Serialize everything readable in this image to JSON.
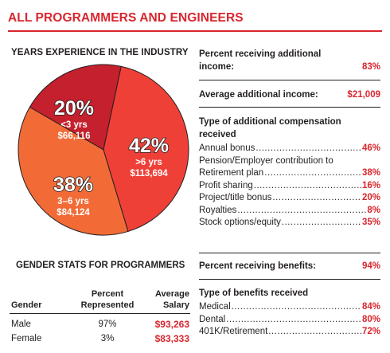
{
  "title": "ALL PROGRAMMERS AND ENGINEERS",
  "chart_data": {
    "type": "pie",
    "title": "YEARS EXPERIENCE IN THE INDUSTRY",
    "slices": [
      {
        "percent_label": "20%",
        "value": 20,
        "range": "<3 yrs",
        "salary": "$66,116",
        "color": "#c4202d"
      },
      {
        "percent_label": "42%",
        "value": 42,
        "range": ">6 yrs",
        "salary": "$113,694",
        "color": "#ef4037"
      },
      {
        "percent_label": "38%",
        "value": 38,
        "range": "3–6 yrs",
        "salary": "$84,124",
        "color": "#f26b36"
      }
    ]
  },
  "gender": {
    "title": "GENDER STATS FOR PROGRAMMERS",
    "col_gender": "Gender",
    "col_percent_1": "Percent",
    "col_percent_2": "Represented",
    "col_salary_1": "Average",
    "col_salary_2": "Salary",
    "rows": [
      {
        "gender": "Male",
        "percent": "97%",
        "salary": "$93,263"
      },
      {
        "gender": "Female",
        "percent": "3%",
        "salary": "$83,333"
      }
    ]
  },
  "additional": {
    "label_1": "Percent receiving additional",
    "label_2": "income:",
    "value": "83%"
  },
  "avg_additional": {
    "label": "Average additional income:",
    "value": "$21,009"
  },
  "comp_types": {
    "title_1": "Type of additional compensation",
    "title_2": "received",
    "items": [
      {
        "name": "Annual bonus",
        "value": "46%"
      },
      {
        "name": "Pension/Employer contribution to",
        "name2": "Retirement plan",
        "value": "38%"
      },
      {
        "name": "Profit sharing",
        "value": "16%"
      },
      {
        "name": "Project/title bonus",
        "value": "20%"
      },
      {
        "name": "Royalties",
        "value": "8%"
      },
      {
        "name": "Stock options/equity",
        "value": "35%"
      }
    ]
  },
  "benefits": {
    "label": "Percent receiving benefits:",
    "value": "94%"
  },
  "benefit_types": {
    "title": "Type of benefits received",
    "items": [
      {
        "name": "Medical",
        "value": "84%"
      },
      {
        "name": "Dental",
        "value": "80%"
      },
      {
        "name": "401K/Retirement",
        "value": "72%"
      }
    ]
  }
}
